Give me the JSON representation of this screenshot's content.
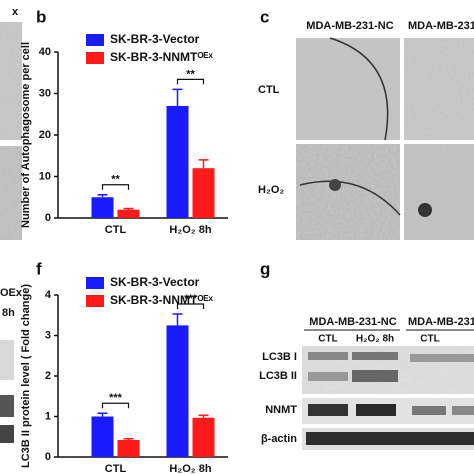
{
  "chart_data": [
    {
      "type": "bar",
      "ylabel": "Number of Autophagosome per cell",
      "categories": [
        "CTL",
        "H₂O₂ 8h"
      ],
      "series": [
        {
          "name": "SK-BR-3-Vector",
          "color": "#1a1aff",
          "values": [
            5,
            27
          ],
          "errors": [
            0.6,
            4
          ]
        },
        {
          "name": "SK-BR-3-NNMTᴼᴱˣ",
          "color": "#ff1a1a",
          "values": [
            2,
            12
          ],
          "errors": [
            0.3,
            2
          ]
        }
      ],
      "annotations": [
        "**",
        "**"
      ],
      "ylim": [
        0,
        40
      ],
      "yticks": [
        0,
        10,
        20,
        30,
        40
      ]
    },
    {
      "type": "bar",
      "ylabel": "LC3B II protein level ( Fold change)",
      "categories": [
        "CTL",
        "H₂O₂ 8h"
      ],
      "series": [
        {
          "name": "SK-BR-3-Vector",
          "color": "#1a1aff",
          "values": [
            1.0,
            3.25
          ],
          "errors": [
            0.08,
            0.28
          ]
        },
        {
          "name": "SK-BR-3-NNMTᴼᴱˣ",
          "color": "#ff1a1a",
          "values": [
            0.42,
            0.97
          ],
          "errors": [
            0.03,
            0.06
          ]
        }
      ],
      "annotations": [
        "***",
        "***"
      ],
      "ylim": [
        0,
        4
      ],
      "yticks": [
        0,
        1,
        2,
        3,
        4
      ]
    }
  ],
  "panels": {
    "b": "b",
    "c": "c",
    "f": "f",
    "g": "g",
    "left_fragments": [
      "x",
      "OEx",
      "8h"
    ],
    "c_columns": [
      "MDA-MB-231-NC",
      "MDA-MB-231-"
    ],
    "c_rows": [
      "CTL",
      "H₂O₂"
    ],
    "g_groups": [
      "MDA-MB-231-NC",
      "MDA-MB-231-"
    ],
    "g_lanes": [
      "CTL",
      "H₂O₂ 8h",
      "CTL"
    ],
    "g_rows": [
      "LC3B I",
      "LC3B II",
      "NNMT",
      "β-actin"
    ]
  }
}
